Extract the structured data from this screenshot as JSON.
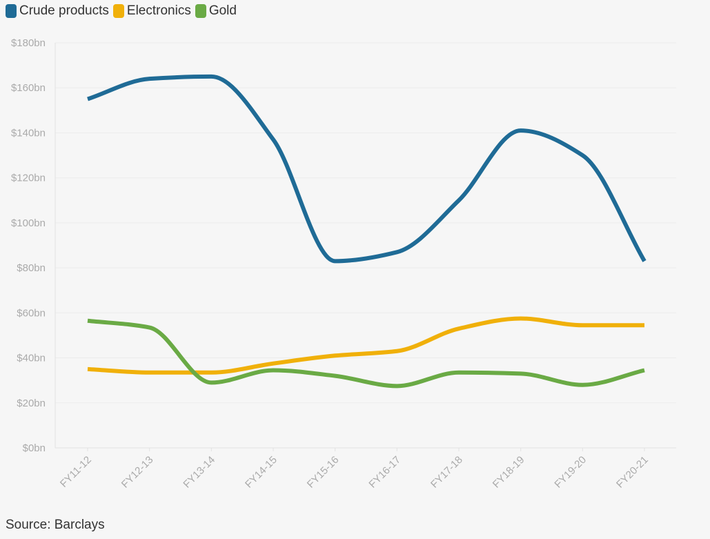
{
  "chart_data": {
    "type": "line",
    "categories": [
      "FY11-12",
      "FY12-13",
      "FY13-14",
      "FY14-15",
      "FY15-16",
      "FY16-17",
      "FY17-18",
      "FY18-19",
      "FY19-20",
      "FY20-21"
    ],
    "series": [
      {
        "name": "Crude products",
        "color": "#1f6b96",
        "values": [
          155,
          164,
          165,
          137,
          83,
          87,
          110,
          141,
          130,
          83
        ]
      },
      {
        "name": "Electronics",
        "color": "#f0b00a",
        "values": [
          35,
          33.5,
          33.5,
          37.5,
          41,
          43,
          53,
          57.5,
          54.5,
          54.5
        ]
      },
      {
        "name": "Gold",
        "color": "#6aaa45",
        "values": [
          56.5,
          53.5,
          29,
          34.5,
          32,
          27.5,
          33.5,
          33,
          28,
          34.5
        ]
      }
    ],
    "y_ticks": [
      "$0bn",
      "$20bn",
      "$40bn",
      "$60bn",
      "$80bn",
      "$100bn",
      "$120bn",
      "$140bn",
      "$160bn",
      "$180bn"
    ],
    "ylim": [
      0,
      180
    ],
    "grid": true,
    "legend_position": "top-left"
  },
  "source": "Source: Barclays"
}
